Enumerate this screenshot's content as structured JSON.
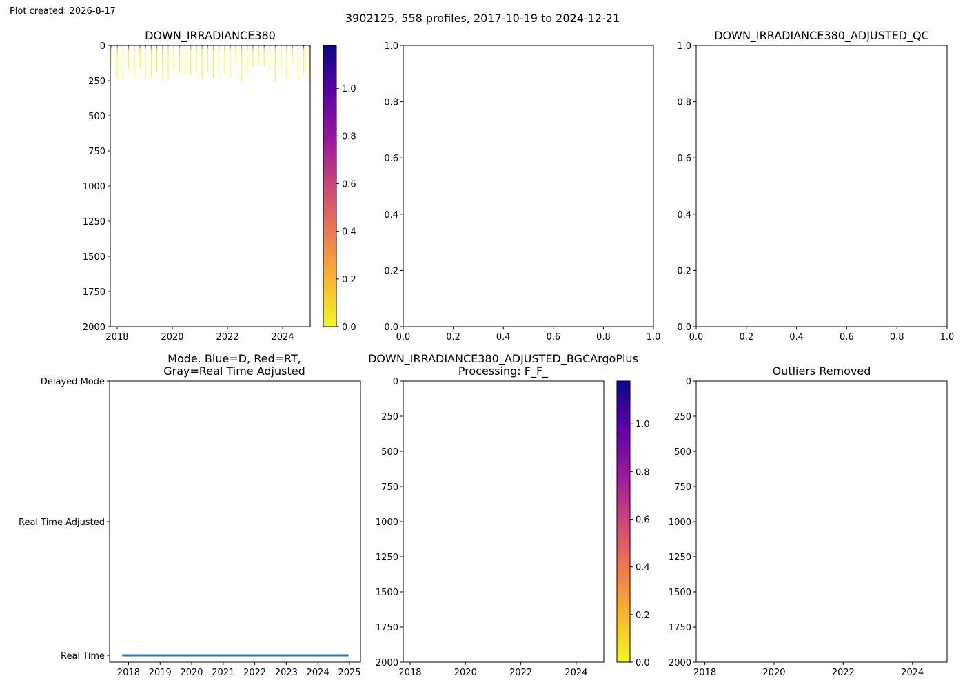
{
  "plot_created": "Plot created: 2026-8-17",
  "suptitle": "3902125, 558 profiles, 2017-10-19 to 2024-12-21",
  "colormap": {
    "name": "plasma_r",
    "stops": [
      "#f0f921",
      "#fdb42f",
      "#ed7953",
      "#cc4778",
      "#9c179e",
      "#5c01a6",
      "#0d0887"
    ]
  },
  "chart_data": [
    {
      "id": "p1",
      "type": "heatmap",
      "title": "DOWN_IRRADIANCE380",
      "xlim": [
        2017.75,
        2025.0
      ],
      "ylim": [
        2000,
        0
      ],
      "xticks": [
        2018,
        2020,
        2022,
        2024
      ],
      "yticks": [
        0,
        250,
        500,
        750,
        1000,
        1250,
        1500,
        1750,
        2000
      ],
      "data_summary": {
        "profiles": 558,
        "max_depth": 260,
        "time_start": "2017-10-19",
        "time_end": "2024-12-21",
        "value_range": [
          0.0,
          1.2
        ]
      },
      "colorbar": {
        "range": [
          0.0,
          1.18
        ],
        "ticks": [
          0.0,
          0.2,
          0.4,
          0.6,
          0.8,
          1.0
        ]
      }
    },
    {
      "id": "p2",
      "type": "scatter",
      "title": "",
      "xlim": [
        0.0,
        1.0
      ],
      "ylim": [
        0.0,
        1.0
      ],
      "xticks": [
        0.0,
        0.2,
        0.4,
        0.6,
        0.8,
        1.0
      ],
      "yticks": [
        0.0,
        0.2,
        0.4,
        0.6,
        0.8,
        1.0
      ],
      "xticklabels": [
        "0.0",
        "0.2",
        "0.4",
        "0.6",
        "0.8",
        "1.0"
      ],
      "yticklabels": [
        "0.0",
        "0.2",
        "0.4",
        "0.6",
        "0.8",
        "1.0"
      ]
    },
    {
      "id": "p3",
      "type": "scatter",
      "title": "DOWN_IRRADIANCE380_ADJUSTED_QC",
      "xlim": [
        0.0,
        1.0
      ],
      "ylim": [
        0.0,
        1.0
      ],
      "xticks": [
        0.0,
        0.2,
        0.4,
        0.6,
        0.8,
        1.0
      ],
      "yticks": [
        0.0,
        0.2,
        0.4,
        0.6,
        0.8,
        1.0
      ],
      "xticklabels": [
        "0.0",
        "0.2",
        "0.4",
        "0.6",
        "0.8",
        "1.0"
      ],
      "yticklabels": [
        "0.0",
        "0.2",
        "0.4",
        "0.6",
        "0.8",
        "1.0"
      ]
    },
    {
      "id": "p4",
      "type": "line",
      "title": [
        "Mode. Blue=D, Red=RT,",
        "Gray=Real Time Adjusted"
      ],
      "xlim": [
        2017.4,
        2025.35
      ],
      "xticks": [
        2018,
        2019,
        2020,
        2021,
        2022,
        2023,
        2024,
        2025
      ],
      "yticklabels": [
        "Delayed Mode",
        "Real Time Adjusted",
        "Real Time"
      ],
      "series": [
        {
          "color": "#1f77b4",
          "x": [
            2017.8,
            2024.97
          ],
          "y": [
            "Real Time",
            "Real Time"
          ]
        }
      ]
    },
    {
      "id": "p5",
      "type": "heatmap",
      "title": [
        "DOWN_IRRADIANCE380_ADJUSTED_BGCArgoPlus",
        "Processing: F_F_"
      ],
      "xlim": [
        2017.75,
        2025.0
      ],
      "ylim": [
        2000,
        0
      ],
      "xticks": [
        2018,
        2020,
        2022,
        2024
      ],
      "yticks": [
        0,
        250,
        500,
        750,
        1000,
        1250,
        1500,
        1750,
        2000
      ],
      "colorbar": {
        "range": [
          0.0,
          1.18
        ],
        "ticks": [
          0.0,
          0.2,
          0.4,
          0.6,
          0.8,
          1.0
        ]
      }
    },
    {
      "id": "p6",
      "type": "scatter",
      "title": "Outliers Removed",
      "xlim": [
        2017.75,
        2025.0
      ],
      "ylim": [
        2000,
        0
      ],
      "xticks": [
        2018,
        2020,
        2022,
        2024
      ],
      "yticks": [
        0,
        250,
        500,
        750,
        1000,
        1250,
        1500,
        1750,
        2000
      ]
    }
  ]
}
